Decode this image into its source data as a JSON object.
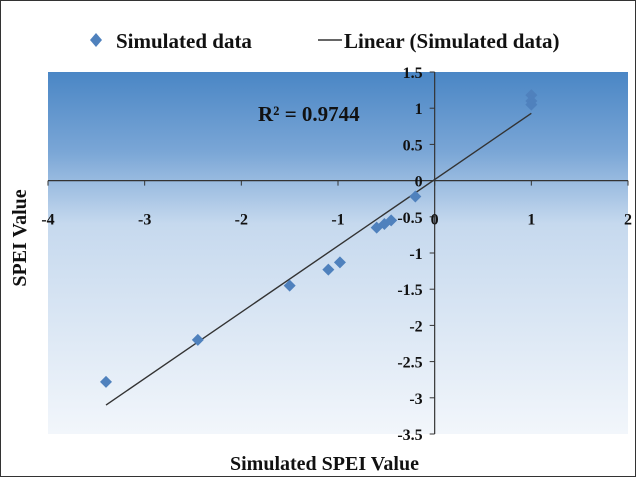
{
  "chart_data": {
    "type": "scatter",
    "xlabel": "Simulated SPEI Value",
    "ylabel": "SPEI Value",
    "xlim": [
      -4,
      2
    ],
    "ylim": [
      -3.5,
      1.5
    ],
    "x_ticks": [
      "-4",
      "-3",
      "-2",
      "-1",
      "0",
      "1",
      "2"
    ],
    "x_tick_values": [
      -4,
      -3,
      -2,
      -1,
      0,
      1,
      2
    ],
    "y_ticks": [
      "1.5",
      "1",
      "0.5",
      "0",
      "-0.5",
      "-1",
      "-1.5",
      "-2",
      "-2.5",
      "-3",
      "-3.5"
    ],
    "y_tick_values": [
      1.5,
      1,
      0.5,
      0,
      -0.5,
      -1,
      -1.5,
      -2,
      -2.5,
      -3,
      -3.5
    ],
    "annotation": "R² = 0.9744",
    "legend_position": "top",
    "series": [
      {
        "name": "Simulated data",
        "marker": "diamond",
        "color": "#4f81bd",
        "points": [
          {
            "x": -3.4,
            "y": -2.78
          },
          {
            "x": -2.45,
            "y": -2.2
          },
          {
            "x": -1.5,
            "y": -1.45
          },
          {
            "x": -1.1,
            "y": -1.23
          },
          {
            "x": -0.98,
            "y": -1.13
          },
          {
            "x": -0.6,
            "y": -0.65
          },
          {
            "x": -0.52,
            "y": -0.6
          },
          {
            "x": -0.45,
            "y": -0.55
          },
          {
            "x": -0.2,
            "y": -0.22
          },
          {
            "x": 1.0,
            "y": 1.18
          },
          {
            "x": 1.0,
            "y": 1.1
          },
          {
            "x": 1.0,
            "y": 1.05
          }
        ]
      },
      {
        "name": "Linear (Simulated data)",
        "type": "trendline",
        "color": "#333333",
        "points": [
          {
            "x": -3.4,
            "y": -3.1
          },
          {
            "x": 1.0,
            "y": 0.93
          }
        ]
      }
    ],
    "plot_background_top": "#4a86c5",
    "plot_background_bottom": "#f2f6fb"
  }
}
